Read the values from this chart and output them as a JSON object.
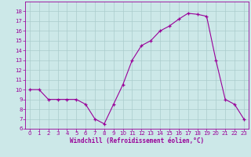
{
  "x": [
    0,
    1,
    2,
    3,
    4,
    5,
    6,
    7,
    8,
    9,
    10,
    11,
    12,
    13,
    14,
    15,
    16,
    17,
    18,
    19,
    20,
    21,
    22,
    23
  ],
  "y": [
    10,
    10,
    9,
    9,
    9,
    9,
    8.5,
    7,
    6.5,
    8.5,
    10.5,
    13,
    14.5,
    15,
    16,
    16.5,
    17.2,
    17.8,
    17.7,
    17.5,
    13,
    9,
    8.5,
    7
  ],
  "line_color": "#990099",
  "marker": "+",
  "bg_color": "#cce8e8",
  "grid_color": "#aacccc",
  "xlabel": "Windchill (Refroidissement éolien,°C)",
  "xlabel_color": "#990099",
  "tick_color": "#990099",
  "ylim": [
    6,
    19
  ],
  "yticks": [
    6,
    7,
    8,
    9,
    10,
    11,
    12,
    13,
    14,
    15,
    16,
    17,
    18
  ],
  "xticks": [
    0,
    1,
    2,
    3,
    4,
    5,
    6,
    7,
    8,
    9,
    10,
    11,
    12,
    13,
    14,
    15,
    16,
    17,
    18,
    19,
    20,
    21,
    22,
    23
  ]
}
